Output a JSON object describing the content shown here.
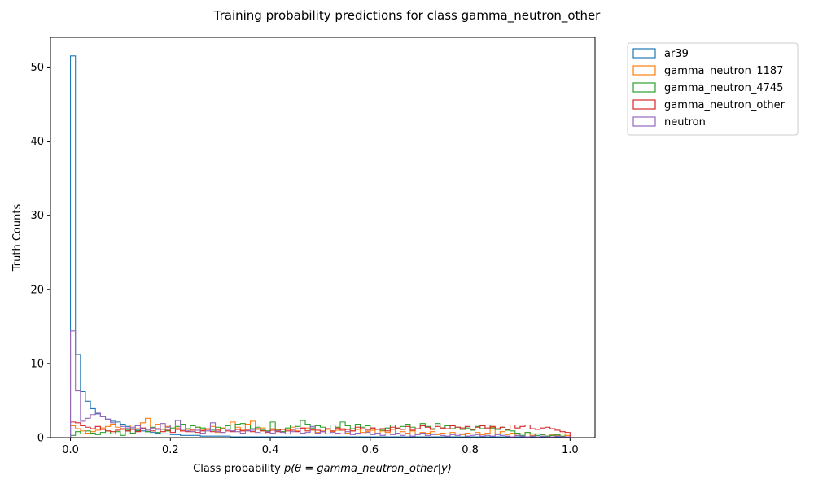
{
  "chart_data": {
    "type": "histogram",
    "title": "Training probability predictions for class gamma_neutron_other",
    "xlabel_prefix": "Class probability ",
    "xlabel_math": "p(θ = gamma_neutron_other|y)",
    "ylabel": "Truth Counts",
    "xlim": [
      -0.04,
      1.05
    ],
    "ylim": [
      0,
      54
    ],
    "xticks": [
      0.0,
      0.2,
      0.4,
      0.6,
      0.8,
      1.0
    ],
    "xtick_labels": [
      "0.0",
      "0.2",
      "0.4",
      "0.6",
      "0.8",
      "1.0"
    ],
    "yticks": [
      0,
      10,
      20,
      30,
      40,
      50
    ],
    "ytick_labels": [
      "0",
      "10",
      "20",
      "30",
      "40",
      "50"
    ],
    "grid": false,
    "legend_position": "outside-top-right",
    "bin_edges": {
      "start": 0.0,
      "end": 1.0,
      "count": 100
    },
    "series": [
      {
        "name": "ar39",
        "color": "#1f77b4",
        "values": [
          51.5,
          11.2,
          6.2,
          4.9,
          3.9,
          3.2,
          2.8,
          2.4,
          2.2,
          2.1,
          1.8,
          1.5,
          1.2,
          1.0,
          0.9,
          0.8,
          0.7,
          0.6,
          0.5,
          0.5,
          0.4,
          0.4,
          0.3,
          0.3,
          0.3,
          0.3,
          0.2,
          0.2,
          0.2,
          0.2,
          0.2,
          0.2,
          0.1,
          0.1,
          0.1,
          0.1,
          0.1,
          0.1,
          0.1,
          0.1,
          0.1,
          0.1,
          0.1,
          0.1,
          0.1,
          0.1,
          0.1,
          0.1,
          0.1,
          0.1,
          0.1,
          0.1,
          0.1,
          0.1,
          0.1,
          0.1,
          0.1,
          0.1,
          0.1,
          0.1,
          0.1,
          0.1,
          0.1,
          0.1,
          0.1,
          0.1,
          0.1,
          0.1,
          0.1,
          0.1,
          0.1,
          0.1,
          0.1,
          0.1,
          0.1,
          0.1,
          0.1,
          0.1,
          0.1,
          0.1,
          0.1,
          0.1,
          0.1,
          0.1,
          0.1,
          0.1,
          0.1,
          0.1,
          0.1,
          0.1,
          0.1,
          0.1,
          0.1,
          0.1,
          0.1,
          0.1,
          0.1,
          0.1,
          0.1,
          0.1
        ]
      },
      {
        "name": "gamma_neutron_1187",
        "color": "#ff7f0e",
        "values": [
          1.6,
          1.2,
          0.9,
          0.6,
          0.8,
          1.0,
          1.3,
          1.5,
          1.8,
          1.4,
          1.1,
          0.9,
          1.7,
          1.2,
          2.0,
          2.6,
          1.3,
          1.8,
          1.1,
          1.5,
          1.7,
          1.3,
          0.9,
          1.1,
          0.8,
          1.4,
          1.0,
          1.2,
          1.5,
          0.7,
          1.3,
          1.1,
          2.1,
          1.4,
          1.0,
          1.8,
          2.2,
          1.1,
          1.3,
          0.9,
          1.2,
          1.0,
          0.8,
          1.1,
          1.4,
          0.9,
          1.2,
          1.3,
          1.0,
          0.7,
          0.9,
          1.1,
          0.8,
          1.0,
          1.2,
          0.6,
          0.9,
          1.1,
          0.7,
          0.8,
          1.0,
          0.6,
          0.9,
          0.7,
          1.1,
          0.5,
          0.8,
          0.6,
          0.9,
          0.5,
          0.7,
          0.6,
          0.8,
          0.4,
          0.6,
          0.5,
          0.7,
          0.5,
          0.4,
          0.6,
          0.5,
          0.7,
          0.4,
          0.6,
          1.4,
          0.5,
          0.8,
          0.4,
          0.6,
          0.3,
          0.5,
          0.7,
          0.3,
          0.5,
          0.4,
          0.2,
          0.4,
          0.3,
          0.5,
          0.3
        ]
      },
      {
        "name": "gamma_neutron_4745",
        "color": "#2ca02c",
        "values": [
          0.3,
          0.8,
          0.5,
          0.9,
          0.6,
          0.4,
          0.7,
          0.9,
          0.5,
          0.8,
          0.3,
          1.0,
          0.6,
          0.9,
          1.2,
          0.8,
          1.4,
          0.7,
          1.1,
          0.9,
          1.3,
          1.5,
          1.8,
          1.2,
          1.6,
          1.4,
          1.3,
          1.1,
          1.0,
          1.4,
          1.2,
          1.6,
          0.9,
          1.8,
          1.9,
          1.7,
          1.2,
          1.4,
          1.0,
          0.9,
          2.1,
          1.1,
          0.8,
          1.3,
          1.7,
          1.5,
          2.3,
          1.8,
          1.3,
          1.6,
          1.4,
          1.2,
          1.7,
          1.4,
          2.1,
          1.6,
          1.2,
          1.8,
          1.4,
          1.6,
          1.3,
          1.1,
          1.0,
          1.3,
          1.7,
          1.2,
          1.5,
          1.8,
          1.4,
          1.2,
          1.9,
          1.5,
          1.2,
          1.9,
          1.3,
          1.6,
          1.2,
          1.4,
          1.1,
          1.3,
          1.0,
          1.5,
          1.2,
          1.7,
          1.3,
          1.1,
          1.4,
          1.0,
          0.9,
          0.6,
          0.3,
          0.7,
          0.5,
          0.3,
          0.4,
          0.2,
          0.3,
          0.4,
          0.2,
          0.1
        ]
      },
      {
        "name": "gamma_neutron_other",
        "color": "#d62728",
        "values": [
          2.1,
          2.0,
          1.6,
          1.4,
          1.2,
          1.5,
          1.1,
          0.9,
          0.8,
          1.0,
          1.2,
          0.9,
          1.1,
          0.8,
          1.3,
          1.0,
          0.9,
          1.2,
          0.8,
          1.0,
          0.7,
          1.1,
          0.9,
          0.8,
          1.0,
          0.7,
          0.9,
          1.1,
          0.8,
          1.0,
          0.7,
          0.9,
          0.8,
          1.1,
          0.9,
          1.0,
          0.8,
          1.2,
          0.9,
          0.7,
          1.0,
          0.8,
          1.1,
          0.9,
          1.0,
          0.8,
          1.3,
          0.9,
          1.1,
          1.0,
          0.8,
          1.2,
          0.9,
          1.3,
          1.0,
          1.1,
          0.9,
          1.4,
          1.2,
          1.0,
          1.3,
          1.1,
          1.2,
          0.9,
          1.4,
          1.3,
          1.1,
          1.5,
          1.0,
          1.2,
          1.6,
          1.4,
          1.1,
          1.5,
          1.3,
          1.2,
          1.6,
          1.4,
          1.3,
          1.5,
          1.1,
          1.4,
          1.6,
          1.3,
          1.5,
          1.2,
          1.4,
          1.1,
          1.7,
          1.3,
          1.5,
          1.7,
          1.2,
          1.1,
          1.3,
          1.4,
          1.2,
          1.0,
          0.8,
          0.7
        ]
      },
      {
        "name": "neutron",
        "color": "#9467bd",
        "values": [
          14.4,
          6.3,
          2.2,
          2.6,
          3.1,
          3.3,
          2.8,
          2.5,
          2.0,
          1.7,
          1.5,
          1.3,
          1.4,
          1.6,
          1.2,
          1.0,
          1.3,
          1.1,
          1.9,
          1.4,
          1.7,
          2.3,
          1.1,
          0.9,
          0.8,
          1.0,
          0.6,
          0.9,
          2.0,
          0.8,
          0.7,
          1.1,
          0.9,
          0.8,
          0.6,
          0.9,
          1.0,
          0.7,
          0.5,
          0.8,
          0.6,
          0.9,
          0.7,
          0.5,
          0.8,
          1.2,
          0.6,
          0.7,
          1.5,
          0.6,
          0.8,
          0.5,
          0.7,
          0.6,
          0.5,
          0.8,
          0.4,
          0.6,
          0.5,
          0.7,
          0.4,
          0.6,
          0.3,
          0.5,
          0.4,
          0.6,
          0.3,
          0.5,
          0.2,
          0.4,
          0.6,
          0.3,
          0.4,
          0.5,
          0.3,
          0.2,
          0.4,
          0.3,
          0.5,
          0.2,
          0.3,
          0.4,
          0.2,
          0.3,
          0.2,
          0.4,
          0.3,
          0.2,
          0.1,
          0.3,
          0.2,
          0.1,
          0.2,
          0.1,
          0.2,
          0.1,
          0.1,
          0.2,
          0.1,
          0.1
        ]
      }
    ]
  }
}
